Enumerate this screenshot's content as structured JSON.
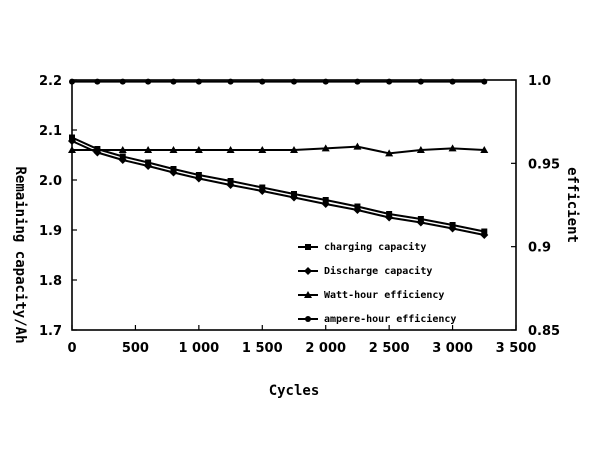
{
  "chart_data": {
    "type": "line",
    "xlabel": "Cycles",
    "ylabel": "Remaining capacity/Ah",
    "y2label": "efficient",
    "xlim": [
      0,
      3500
    ],
    "ylim": [
      1.7,
      2.2
    ],
    "y2lim": [
      0.85,
      1.0
    ],
    "x_ticks": [
      0,
      500,
      1000,
      1500,
      2000,
      2500,
      3000,
      3500
    ],
    "x_tick_labels": [
      "0",
      "500",
      "1 000",
      "1 500",
      "2 000",
      "2 500",
      "3 000",
      "3 500"
    ],
    "y_ticks": [
      1.7,
      1.8,
      1.9,
      2.0,
      2.1,
      2.2
    ],
    "y_tick_labels": [
      "1.7",
      "1.8",
      "1.9",
      "2.0",
      "2.1",
      "2.2"
    ],
    "y2_ticks": [
      0.85,
      0.9,
      0.95,
      1.0
    ],
    "y2_tick_labels": [
      "0.85",
      "0.9",
      "0.95",
      "1.0"
    ],
    "grid": false,
    "legend_position": "bottom-right",
    "series": [
      {
        "name": "charging capacity",
        "axis": "left",
        "marker": "square",
        "x": [
          0,
          200,
          400,
          600,
          800,
          1000,
          1250,
          1500,
          1750,
          2000,
          2250,
          2500,
          2750,
          3000,
          3250
        ],
        "y": [
          2.085,
          2.062,
          2.047,
          2.035,
          2.022,
          2.01,
          1.998,
          1.985,
          1.972,
          1.96,
          1.947,
          1.932,
          1.922,
          1.91,
          1.897
        ]
      },
      {
        "name": "Discharge capacity",
        "axis": "left",
        "marker": "diamond",
        "x": [
          0,
          200,
          400,
          600,
          800,
          1000,
          1250,
          1500,
          1750,
          2000,
          2250,
          2500,
          2750,
          3000,
          3250
        ],
        "y": [
          2.078,
          2.055,
          2.04,
          2.028,
          2.015,
          2.003,
          1.99,
          1.978,
          1.965,
          1.952,
          1.94,
          1.925,
          1.915,
          1.903,
          1.89
        ]
      },
      {
        "name": "Watt-hour efficiency",
        "axis": "right",
        "marker": "triangle",
        "x": [
          0,
          200,
          400,
          600,
          800,
          1000,
          1250,
          1500,
          1750,
          2000,
          2250,
          2500,
          2750,
          3000,
          3250
        ],
        "y": [
          0.958,
          0.958,
          0.958,
          0.958,
          0.958,
          0.958,
          0.958,
          0.958,
          0.958,
          0.959,
          0.96,
          0.956,
          0.958,
          0.959,
          0.958
        ]
      },
      {
        "name": "ampere-hour efficiency",
        "axis": "right",
        "marker": "circle",
        "x": [
          0,
          200,
          400,
          600,
          800,
          1000,
          1250,
          1500,
          1750,
          2000,
          2250,
          2500,
          2750,
          3000,
          3250
        ],
        "y": [
          0.999,
          0.999,
          0.999,
          0.999,
          0.999,
          0.999,
          0.999,
          0.999,
          0.999,
          0.999,
          0.999,
          0.999,
          0.999,
          0.999,
          0.999
        ]
      }
    ]
  }
}
